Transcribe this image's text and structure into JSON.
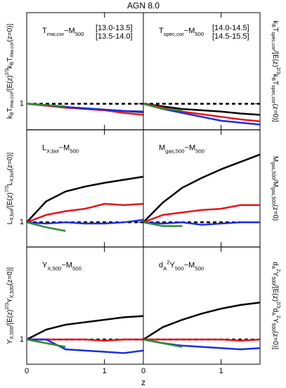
{
  "title": "AGN 8.0",
  "xlabel": "z",
  "chart_data": [
    {
      "type": "line",
      "label": [
        {
          "t": "T"
        },
        {
          "sub": "mw,cor"
        },
        {
          "t": "−M"
        },
        {
          "sub": "500"
        }
      ],
      "ylabel": [
        {
          "t": "k"
        },
        {
          "sub": "B"
        },
        {
          "t": "T"
        },
        {
          "sub": "mw,cor"
        },
        {
          "t": "/[E(z)"
        },
        {
          "sup": "2/3"
        },
        {
          "t": "k"
        },
        {
          "sub": "B"
        },
        {
          "t": "T"
        },
        {
          "sub": "mw,cor"
        },
        {
          "t": "(z=0)]"
        }
      ],
      "x": [
        0,
        0.25,
        0.5,
        0.75,
        1.0,
        1.25,
        1.5
      ],
      "xlim": [
        0,
        1.5
      ],
      "xticks": [
        0,
        1
      ],
      "ylim": [
        0.8,
        1.7
      ],
      "yticks": [
        1
      ],
      "reference_line": 1,
      "series": [
        {
          "name": "[13.0-13.5]",
          "color": "#000000",
          "values": [
            1,
            0.99,
            0.975,
            0.965,
            0.955,
            0.945,
            0.935
          ]
        },
        {
          "name": "[13.5-14.0]",
          "color": "#e8151b",
          "values": [
            1,
            0.985,
            0.97,
            0.96,
            0.95,
            0.93,
            0.915
          ]
        },
        {
          "color": "#1a2ee0",
          "values": [
            1,
            0.99,
            0.975,
            0.965,
            0.955,
            0.945,
            0.94
          ]
        },
        {
          "color": "#2e8b2e",
          "values": [
            1,
            0.99,
            0.98,
            null,
            null,
            null,
            null
          ]
        }
      ]
    },
    {
      "type": "line",
      "label": [
        {
          "t": "T"
        },
        {
          "sub": "spec,cor"
        },
        {
          "t": "−M"
        },
        {
          "sub": "500"
        }
      ],
      "ylabel": [
        {
          "t": "k"
        },
        {
          "sub": "B"
        },
        {
          "t": "T"
        },
        {
          "sub": "spec,cor"
        },
        {
          "t": "/[E(z)"
        },
        {
          "sup": "2/3"
        },
        {
          "t": "k"
        },
        {
          "sub": "B"
        },
        {
          "t": "T"
        },
        {
          "sub": "spec,cor"
        },
        {
          "t": "(z=0)]"
        }
      ],
      "x": [
        0,
        0.25,
        0.5,
        0.75,
        1.0,
        1.25,
        1.5
      ],
      "xlim": [
        0,
        1.5
      ],
      "xticks": [
        0,
        1
      ],
      "ylim": [
        0.8,
        1.7
      ],
      "yticks": [
        1
      ],
      "reference_line": 1,
      "series": [
        {
          "color": "#000000",
          "values": [
            1,
            0.98,
            0.96,
            0.95,
            0.94,
            0.925,
            0.915
          ]
        },
        {
          "color": "#e8151b",
          "values": [
            1,
            0.97,
            0.94,
            0.92,
            0.9,
            0.88,
            0.865
          ]
        },
        {
          "name": "[14.0-14.5]",
          "color": "#1a2ee0",
          "values": [
            1,
            0.96,
            0.93,
            0.9,
            0.87,
            0.855,
            0.84
          ]
        },
        {
          "name": "[14.5-15.5]",
          "color": "#2e8b2e",
          "values": [
            1,
            0.96,
            0.95,
            null,
            null,
            null,
            null
          ]
        }
      ]
    },
    {
      "type": "line",
      "label": [
        {
          "t": "L"
        },
        {
          "sub": "X,bol"
        },
        {
          "t": "−M"
        },
        {
          "sub": "500"
        }
      ],
      "ylabel": [
        {
          "t": "L"
        },
        {
          "sub": "X,bol"
        },
        {
          "t": "/[E(z)"
        },
        {
          "sup": "7/3"
        },
        {
          "t": "L"
        },
        {
          "sub": "X,bol"
        },
        {
          "t": "(z=0)]"
        }
      ],
      "x": [
        0,
        0.25,
        0.5,
        0.75,
        1.0,
        1.25,
        1.5
      ],
      "xlim": [
        0,
        1.5
      ],
      "xticks": [
        0,
        1
      ],
      "ylim": [
        0.8,
        1.75
      ],
      "yticks": [
        1
      ],
      "reference_line": 1,
      "series": [
        {
          "color": "#000000",
          "values": [
            1,
            1.17,
            1.25,
            1.29,
            1.32,
            1.345,
            1.37
          ]
        },
        {
          "color": "#e8151b",
          "values": [
            1,
            1.06,
            1.09,
            1.11,
            1.15,
            1.14,
            1.15
          ]
        },
        {
          "color": "#1a2ee0",
          "values": [
            1,
            0.99,
            1.0,
            0.99,
            0.99,
            1.0,
            1.02
          ]
        },
        {
          "color": "#2e8b2e",
          "values": [
            1,
            0.96,
            0.93,
            null,
            null,
            null,
            null
          ]
        }
      ]
    },
    {
      "type": "line",
      "label": [
        {
          "t": "M"
        },
        {
          "sub": "gas,500"
        },
        {
          "t": "−M"
        },
        {
          "sub": "500"
        }
      ],
      "ylabel": [
        {
          "t": "M"
        },
        {
          "sub": "gas,500"
        },
        {
          "t": "/M"
        },
        {
          "sub": "gas,500"
        },
        {
          "t": "(z=0)"
        }
      ],
      "x": [
        0,
        0.25,
        0.5,
        0.75,
        1.0,
        1.25,
        1.5
      ],
      "xlim": [
        0,
        1.5
      ],
      "xticks": [
        0,
        1
      ],
      "ylim": [
        0.8,
        1.75
      ],
      "yticks": [
        1
      ],
      "reference_line": 1,
      "series": [
        {
          "color": "#000000",
          "values": [
            1,
            1.16,
            1.28,
            1.36,
            1.43,
            1.49,
            1.55
          ]
        },
        {
          "color": "#e8151b",
          "values": [
            1,
            1.06,
            1.08,
            1.1,
            1.11,
            1.14,
            1.14
          ]
        },
        {
          "color": "#1a2ee0",
          "values": [
            1,
            0.99,
            1.0,
            0.98,
            0.99,
            1.0,
            1.0
          ]
        },
        {
          "color": "#2e8b2e",
          "values": [
            1,
            0.97,
            0.97,
            null,
            null,
            null,
            null
          ]
        }
      ]
    },
    {
      "type": "line",
      "label": [
        {
          "t": "Y"
        },
        {
          "sub": "X,500"
        },
        {
          "t": "−M"
        },
        {
          "sub": "500"
        }
      ],
      "ylabel": [
        {
          "t": "Y"
        },
        {
          "sub": "X,500"
        },
        {
          "t": "/[E(z)"
        },
        {
          "sup": "2/3"
        },
        {
          "t": "Y"
        },
        {
          "sub": "X,500"
        },
        {
          "t": "(z=0)]"
        }
      ],
      "x": [
        0,
        0.25,
        0.5,
        0.75,
        1.0,
        1.25,
        1.5
      ],
      "xlim": [
        0,
        1.5
      ],
      "xticks": [
        0,
        1
      ],
      "ylim": [
        0.8,
        1.75
      ],
      "yticks": [
        1
      ],
      "reference_line": 1,
      "series": [
        {
          "color": "#000000",
          "values": [
            1,
            1.08,
            1.12,
            1.14,
            1.16,
            1.18,
            1.19
          ]
        },
        {
          "color": "#e8151b",
          "values": [
            1,
            1.0,
            1.0,
            1.0,
            0.99,
            1.0,
            1.0
          ]
        },
        {
          "color": "#1a2ee0",
          "values": [
            1,
            1.0,
            0.92,
            0.91,
            0.9,
            0.89,
            0.91
          ]
        },
        {
          "color": "#2e8b2e",
          "values": [
            1,
            0.97,
            0.94,
            null,
            null,
            null,
            null
          ]
        }
      ]
    },
    {
      "type": "line",
      "label": [
        {
          "t": "d"
        },
        {
          "sub": "A"
        },
        {
          "sup": "2"
        },
        {
          "t": "Y"
        },
        {
          "sub": "500"
        },
        {
          "t": "−M"
        },
        {
          "sub": "500"
        }
      ],
      "ylabel": [
        {
          "t": "d"
        },
        {
          "sub": "A"
        },
        {
          "sup": "2"
        },
        {
          "t": "Y"
        },
        {
          "sub": "500"
        },
        {
          "t": "/[E(z)"
        },
        {
          "sup": "2/3"
        },
        {
          "t": "d"
        },
        {
          "sub": "A"
        },
        {
          "sup": "2"
        },
        {
          "t": "Y"
        },
        {
          "sub": "500"
        },
        {
          "t": "(z=0)]"
        }
      ],
      "x": [
        0,
        0.25,
        0.5,
        0.75,
        1.0,
        1.25,
        1.5
      ],
      "xlim": [
        0,
        1.5
      ],
      "xticks": [
        0,
        1
      ],
      "ylim": [
        0.8,
        1.75
      ],
      "yticks": [
        1
      ],
      "reference_line": 1,
      "series": [
        {
          "color": "#000000",
          "values": [
            1,
            1.1,
            1.16,
            1.21,
            1.25,
            1.28,
            1.3
          ]
        },
        {
          "color": "#e8151b",
          "values": [
            1,
            1.0,
            1.0,
            1.0,
            1.0,
            0.99,
            1.0
          ]
        },
        {
          "color": "#1a2ee0",
          "values": [
            1,
            0.97,
            0.95,
            0.94,
            0.93,
            0.92,
            0.93
          ]
        },
        {
          "color": "#2e8b2e",
          "values": [
            1,
            0.97,
            0.94,
            null,
            null,
            null,
            null
          ]
        }
      ]
    }
  ]
}
